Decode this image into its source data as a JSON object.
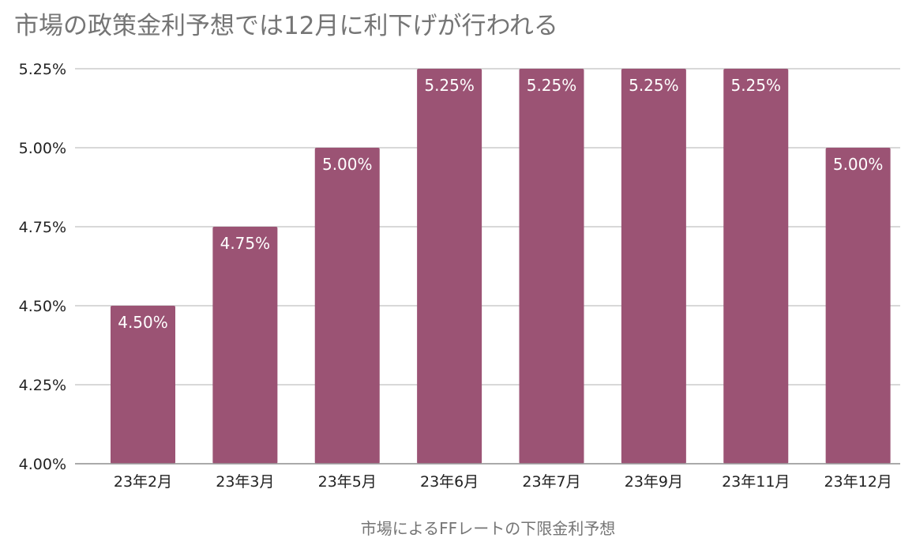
{
  "chart_data": {
    "type": "bar",
    "title": "市場の政策金利予想では12月に利下げが行われる",
    "xlabel": "市場によるFFレートの下限金利予想",
    "ylabel": "",
    "categories": [
      "23年2月",
      "23年3月",
      "23年5月",
      "23年6月",
      "23年7月",
      "23年9月",
      "23年11月",
      "23年12月"
    ],
    "values": [
      4.5,
      4.75,
      5.0,
      5.25,
      5.25,
      5.25,
      5.25,
      5.0
    ],
    "data_labels": [
      "4.50%",
      "4.75%",
      "5.00%",
      "5.25%",
      "5.25%",
      "5.25%",
      "5.25%",
      "5.00%"
    ],
    "ylim": [
      4.0,
      5.25
    ],
    "y_ticks": [
      4.0,
      4.25,
      4.5,
      4.75,
      5.0,
      5.25
    ],
    "y_tick_labels": [
      "4.00%",
      "4.25%",
      "4.50%",
      "4.75%",
      "5.00%",
      "5.25%"
    ],
    "grid": true,
    "legend": "none",
    "bar_color": "#9b5374"
  }
}
